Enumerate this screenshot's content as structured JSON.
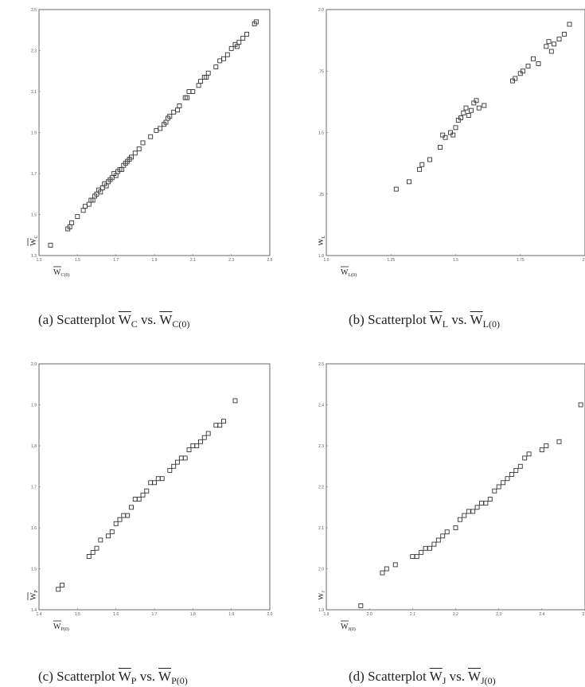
{
  "figure": {
    "panels": [
      {
        "id": "a",
        "caption": {
          "prefix": "(a)  Scatterplot ",
          "y": "W",
          "y_sub": "C",
          "vs": " vs. ",
          "x": "W",
          "x_sub": "C(0)"
        },
        "axis_labels": {
          "y": "W",
          "y_sub": "C",
          "x": "W",
          "x_sub": "C(0)"
        }
      },
      {
        "id": "b",
        "caption": {
          "prefix": "(b)  Scatterplot ",
          "y": "W",
          "y_sub": "L",
          "vs": " vs. ",
          "x": "W",
          "x_sub": "L(0)"
        },
        "axis_labels": {
          "y": "W",
          "y_sub": "L",
          "x": "W",
          "x_sub": "L(0)"
        }
      },
      {
        "id": "c",
        "caption": {
          "prefix": "(c)  Scatterplot ",
          "y": "W",
          "y_sub": "P",
          "vs": " vs. ",
          "x": "W",
          "x_sub": "P(0)"
        },
        "axis_labels": {
          "y": "W",
          "y_sub": "P",
          "x": "W",
          "x_sub": "P(0)"
        }
      },
      {
        "id": "d",
        "caption": {
          "prefix": "(d)  Scatterplot ",
          "y": "W",
          "y_sub": "J",
          "vs": " vs. ",
          "x": "W",
          "x_sub": "J(0)"
        },
        "axis_labels": {
          "y": "W",
          "y_sub": "J",
          "x": "W",
          "x_sub": "J(0)"
        }
      }
    ]
  },
  "chart_data": [
    {
      "type": "scatter",
      "panel": "a",
      "xlabel": "W C(0)",
      "ylabel": "W C",
      "xlim": [
        1.3,
        2.5
      ],
      "ylim": [
        1.3,
        2.5
      ],
      "xticks": [
        "1.3",
        "1.5",
        "1.7",
        "1.9",
        "2.1",
        "2.3",
        "2.5"
      ],
      "yticks": [
        "1.3",
        "1.5",
        "1.7",
        "1.9",
        "2.1",
        "2.3",
        "2.5"
      ],
      "x": [
        1.36,
        1.45,
        1.46,
        1.47,
        1.5,
        1.53,
        1.54,
        1.56,
        1.57,
        1.58,
        1.59,
        1.6,
        1.61,
        1.62,
        1.63,
        1.64,
        1.65,
        1.66,
        1.67,
        1.68,
        1.69,
        1.7,
        1.71,
        1.72,
        1.73,
        1.74,
        1.75,
        1.76,
        1.77,
        1.78,
        1.8,
        1.82,
        1.84,
        1.88,
        1.91,
        1.93,
        1.95,
        1.96,
        1.97,
        1.98,
        2.0,
        2.02,
        2.03,
        2.06,
        2.07,
        2.08,
        2.1,
        2.13,
        2.14,
        2.16,
        2.17,
        2.18,
        2.22,
        2.24,
        2.26,
        2.28,
        2.3,
        2.32,
        2.33,
        2.34,
        2.36,
        2.38,
        2.42,
        2.43
      ],
      "y": [
        1.35,
        1.43,
        1.44,
        1.46,
        1.49,
        1.52,
        1.54,
        1.55,
        1.57,
        1.57,
        1.59,
        1.6,
        1.62,
        1.61,
        1.63,
        1.65,
        1.64,
        1.66,
        1.67,
        1.68,
        1.7,
        1.69,
        1.71,
        1.72,
        1.72,
        1.74,
        1.75,
        1.76,
        1.77,
        1.78,
        1.8,
        1.82,
        1.85,
        1.88,
        1.91,
        1.92,
        1.94,
        1.95,
        1.97,
        1.98,
        2.0,
        2.01,
        2.03,
        2.07,
        2.07,
        2.1,
        2.1,
        2.13,
        2.15,
        2.17,
        2.17,
        2.19,
        2.22,
        2.25,
        2.26,
        2.28,
        2.31,
        2.33,
        2.32,
        2.34,
        2.36,
        2.38,
        2.43,
        2.44
      ]
    },
    {
      "type": "scatter",
      "panel": "b",
      "xlabel": "W L(0)",
      "ylabel": "W L",
      "xlim": [
        1.0,
        2.0
      ],
      "ylim": [
        1.0,
        2.0
      ],
      "xticks": [
        "1.0",
        "1.25",
        "1.5",
        "1.75",
        "2.0"
      ],
      "yticks": [
        "1.0",
        "1.25",
        "1.5",
        "1.75",
        "2.0"
      ],
      "x": [
        1.27,
        1.32,
        1.36,
        1.37,
        1.4,
        1.44,
        1.45,
        1.46,
        1.48,
        1.49,
        1.5,
        1.51,
        1.52,
        1.53,
        1.54,
        1.55,
        1.56,
        1.57,
        1.58,
        1.59,
        1.61,
        1.72,
        1.73,
        1.75,
        1.76,
        1.78,
        1.8,
        1.82,
        1.85,
        1.86,
        1.87,
        1.88,
        1.9,
        1.92,
        1.94
      ],
      "y": [
        1.27,
        1.3,
        1.35,
        1.37,
        1.39,
        1.44,
        1.49,
        1.48,
        1.5,
        1.49,
        1.52,
        1.55,
        1.56,
        1.58,
        1.6,
        1.57,
        1.59,
        1.62,
        1.63,
        1.6,
        1.61,
        1.71,
        1.72,
        1.74,
        1.75,
        1.77,
        1.8,
        1.78,
        1.85,
        1.87,
        1.83,
        1.86,
        1.88,
        1.9,
        1.94
      ]
    },
    {
      "type": "scatter",
      "panel": "c",
      "xlabel": "W P(0)",
      "ylabel": "W P",
      "xlim": [
        1.4,
        2.0
      ],
      "ylim": [
        1.4,
        2.0
      ],
      "xticks": [
        "1.4",
        "1.5",
        "1.6",
        "1.7",
        "1.8",
        "1.9",
        "2.0"
      ],
      "yticks": [
        "1.4",
        "1.5",
        "1.6",
        "1.7",
        "1.8",
        "1.9",
        "2.0"
      ],
      "x": [
        1.45,
        1.46,
        1.53,
        1.54,
        1.55,
        1.56,
        1.58,
        1.59,
        1.6,
        1.61,
        1.62,
        1.63,
        1.64,
        1.65,
        1.66,
        1.67,
        1.68,
        1.69,
        1.7,
        1.71,
        1.72,
        1.74,
        1.75,
        1.76,
        1.77,
        1.78,
        1.79,
        1.8,
        1.81,
        1.82,
        1.83,
        1.84,
        1.86,
        1.87,
        1.88,
        1.91
      ],
      "y": [
        1.45,
        1.46,
        1.53,
        1.54,
        1.55,
        1.57,
        1.58,
        1.59,
        1.61,
        1.62,
        1.63,
        1.63,
        1.65,
        1.67,
        1.67,
        1.68,
        1.69,
        1.71,
        1.71,
        1.72,
        1.72,
        1.74,
        1.75,
        1.76,
        1.77,
        1.77,
        1.79,
        1.8,
        1.8,
        1.81,
        1.82,
        1.83,
        1.85,
        1.85,
        1.86,
        1.91
      ]
    },
    {
      "type": "scatter",
      "panel": "d",
      "xlabel": "W J(0)",
      "ylabel": "W J",
      "xlim": [
        1.9,
        2.5
      ],
      "ylim": [
        1.9,
        2.5
      ],
      "xticks": [
        "1.9",
        "2.0",
        "2.1",
        "2.2",
        "2.3",
        "2.4",
        "2.5"
      ],
      "yticks": [
        "1.9",
        "2.0",
        "2.1",
        "2.2",
        "2.3",
        "2.4",
        "2.5"
      ],
      "x": [
        1.98,
        2.03,
        2.04,
        2.06,
        2.1,
        2.11,
        2.12,
        2.13,
        2.14,
        2.15,
        2.16,
        2.17,
        2.18,
        2.2,
        2.21,
        2.22,
        2.23,
        2.24,
        2.25,
        2.26,
        2.27,
        2.28,
        2.29,
        2.3,
        2.31,
        2.32,
        2.33,
        2.34,
        2.35,
        2.36,
        2.37,
        2.4,
        2.41,
        2.44,
        2.49
      ],
      "y": [
        1.91,
        1.99,
        2.0,
        2.01,
        2.03,
        2.03,
        2.04,
        2.05,
        2.05,
        2.06,
        2.07,
        2.08,
        2.09,
        2.1,
        2.12,
        2.13,
        2.14,
        2.14,
        2.15,
        2.16,
        2.16,
        2.17,
        2.19,
        2.2,
        2.21,
        2.22,
        2.23,
        2.24,
        2.25,
        2.27,
        2.28,
        2.29,
        2.3,
        2.31,
        2.4
      ]
    }
  ]
}
